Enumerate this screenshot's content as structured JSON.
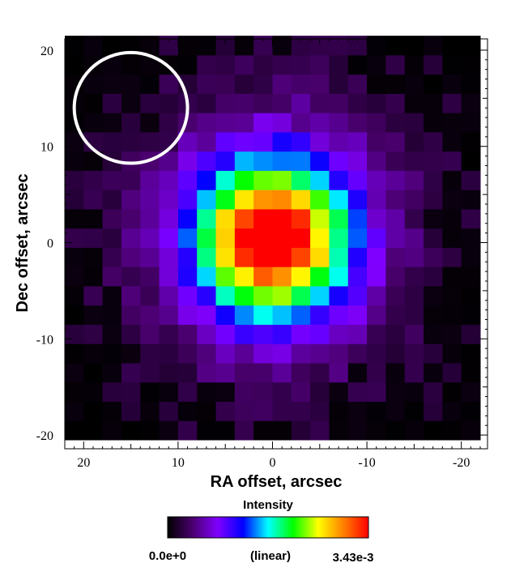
{
  "chart_data": {
    "type": "heatmap",
    "xlabel": "RA offset, arcsec",
    "ylabel": "Dec offset, arcsec",
    "xlim": [
      22,
      -22
    ],
    "ylim": [
      -20.5,
      20.5
    ],
    "x_axis_reversed": true,
    "x_ticks": [
      20,
      10,
      0,
      -10,
      -20
    ],
    "y_ticks": [
      20,
      10,
      0,
      -10,
      -20
    ],
    "pixel_size_arcsec": 2,
    "grid": false,
    "colormap": [
      "#000000",
      "#4b0070",
      "#8000ff",
      "#0000ff",
      "#00ffff",
      "#00ff00",
      "#ffff00",
      "#ff8000",
      "#ff0000"
    ],
    "beam": {
      "center_ra": 15,
      "center_dec": 14,
      "diameter_ra": 12,
      "diameter_dec": 11.5,
      "color": "#ffffff"
    },
    "source": {
      "center_ra": 0,
      "center_dec": 0.5,
      "core_sigma": 5.5,
      "halo_sigma": 13,
      "peak": 0.00343
    },
    "colorbar": {
      "title": "Intensity",
      "min_label": "0.0e+0",
      "max_label": "3.43e-3",
      "scale_label": "(linear)",
      "min": 0.0,
      "max": 0.00343
    }
  }
}
